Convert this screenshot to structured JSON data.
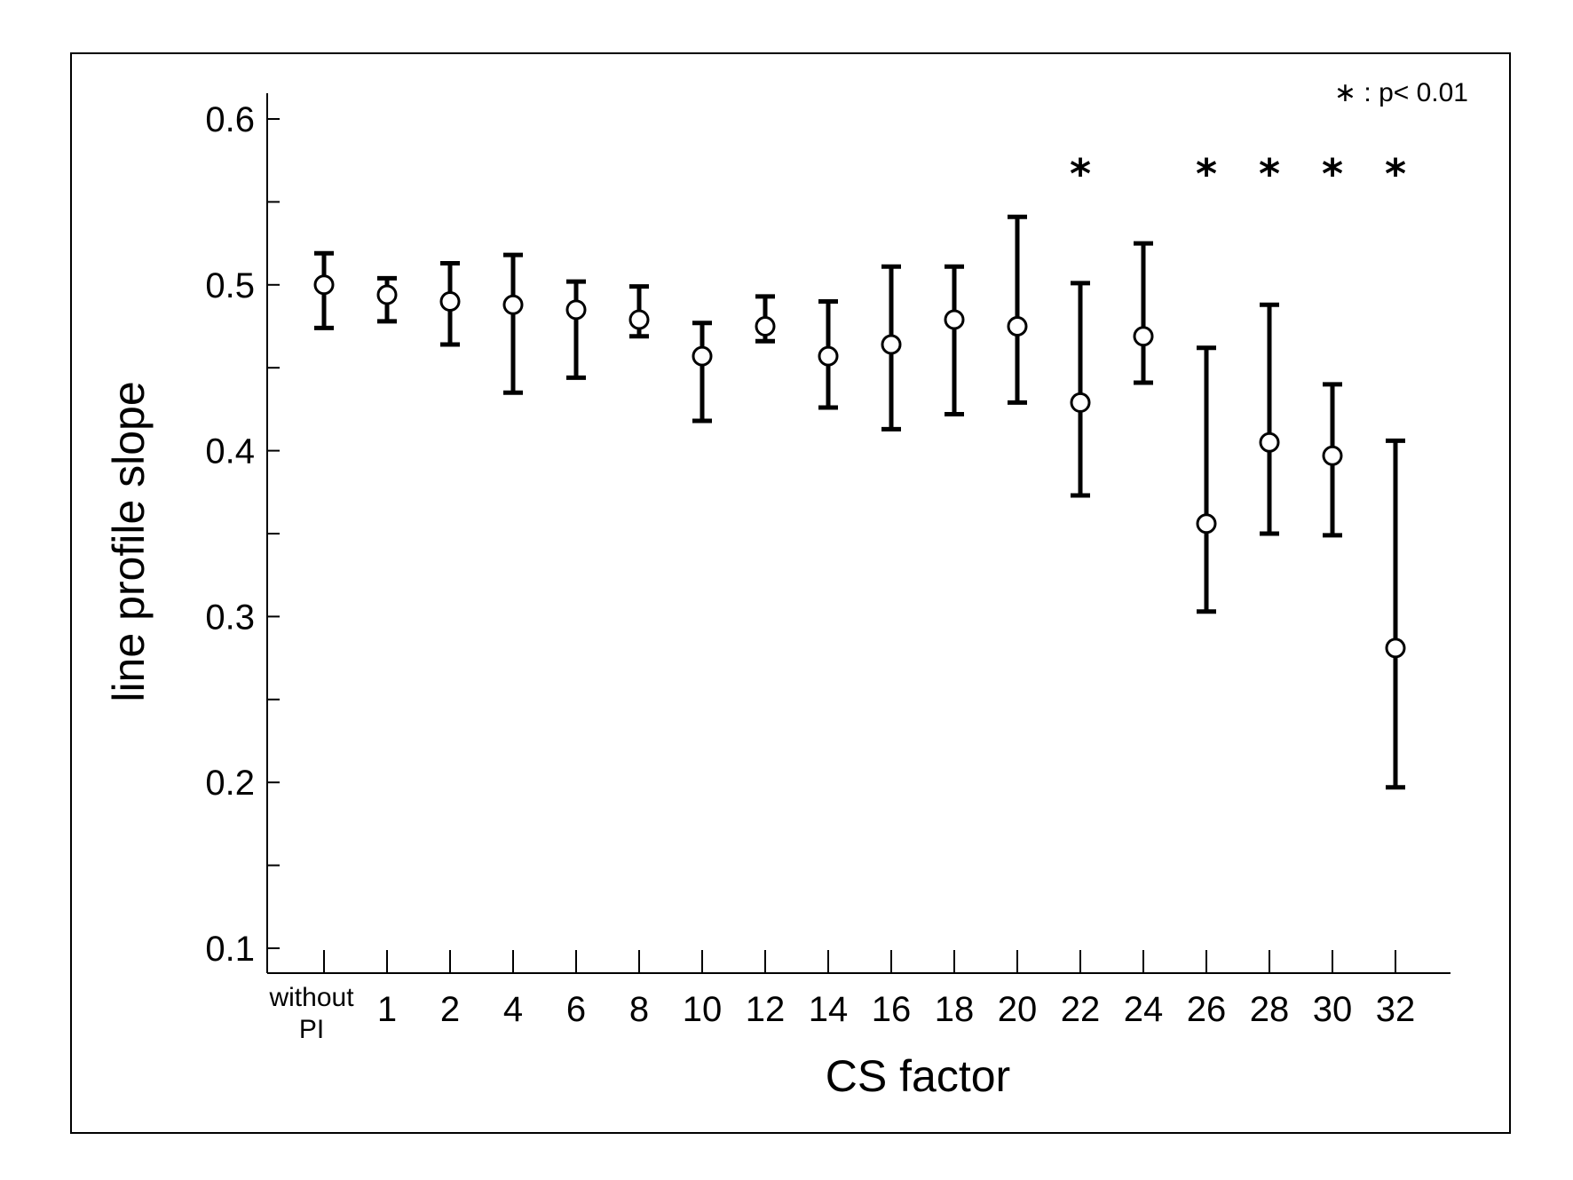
{
  "chart_data": {
    "type": "scatter",
    "xlabel": "CS factor",
    "ylabel": "line profile slope",
    "ylim": [
      0.1,
      0.6
    ],
    "y_ticks": [
      "0.1",
      "0.2",
      "0.3",
      "0.4",
      "0.5",
      "0.6"
    ],
    "y_tick_values": [
      0.1,
      0.2,
      0.3,
      0.4,
      0.5,
      0.6
    ],
    "categories": [
      "without PI",
      "1",
      "2",
      "4",
      "6",
      "8",
      "10",
      "12",
      "14",
      "16",
      "18",
      "20",
      "22",
      "24",
      "26",
      "28",
      "30",
      "32"
    ],
    "series": [
      {
        "values": [
          0.5,
          0.494,
          0.49,
          0.488,
          0.485,
          0.479,
          0.457,
          0.475,
          0.457,
          0.464,
          0.479,
          0.475,
          0.429,
          0.469,
          0.356,
          0.405,
          0.397,
          0.281
        ],
        "upper": [
          0.519,
          0.504,
          0.513,
          0.518,
          0.502,
          0.499,
          0.477,
          0.493,
          0.49,
          0.511,
          0.511,
          0.541,
          0.501,
          0.525,
          0.462,
          0.488,
          0.44,
          0.406
        ],
        "lower": [
          0.474,
          0.478,
          0.464,
          0.435,
          0.444,
          0.469,
          0.418,
          0.466,
          0.426,
          0.413,
          0.422,
          0.429,
          0.373,
          0.441,
          0.303,
          0.35,
          0.349,
          0.197
        ]
      }
    ],
    "significant": [
      false,
      false,
      false,
      false,
      false,
      false,
      false,
      false,
      false,
      false,
      false,
      false,
      true,
      false,
      true,
      true,
      true,
      true
    ],
    "significance_marker": "*",
    "legend_text": "∗ : p< 0.01",
    "legend_position": "top-right",
    "grid": false,
    "colors": {
      "marker_fill": "#ffffff",
      "marker_stroke": "#000000",
      "error_bar": "#000000",
      "axis": "#000000"
    }
  }
}
